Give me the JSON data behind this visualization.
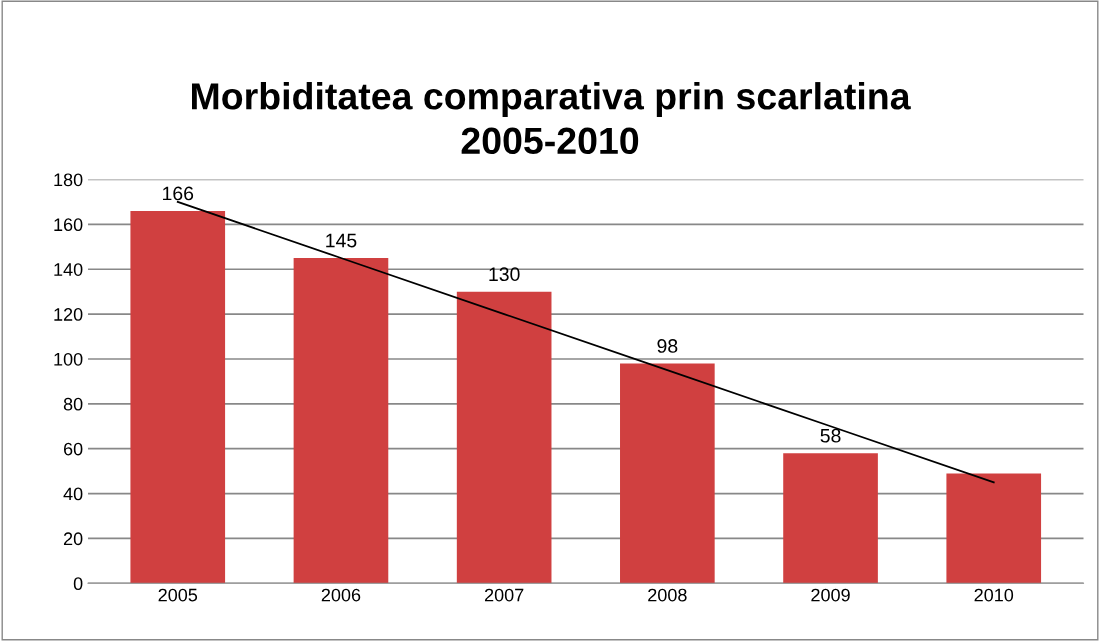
{
  "chart_data": {
    "type": "bar",
    "title": "Morbiditatea comparativa prin scarlatina\n2005-2010",
    "categories": [
      "2005",
      "2006",
      "2007",
      "2008",
      "2009",
      "2010"
    ],
    "series": [
      {
        "color": "#d04040",
        "values": [
          166,
          145,
          130,
          98,
          58,
          49
        ],
        "value_labels": [
          "166",
          "145",
          "130",
          "98",
          "58",
          null
        ]
      },
      {
        "type": "line",
        "color": "#000000",
        "values": [
          170,
          145,
          120,
          95,
          70,
          45
        ]
      }
    ],
    "ylim": [
      0,
      180
    ],
    "yticks": [
      0,
      20,
      40,
      60,
      80,
      100,
      120,
      140,
      160,
      180
    ],
    "grid": "y"
  }
}
